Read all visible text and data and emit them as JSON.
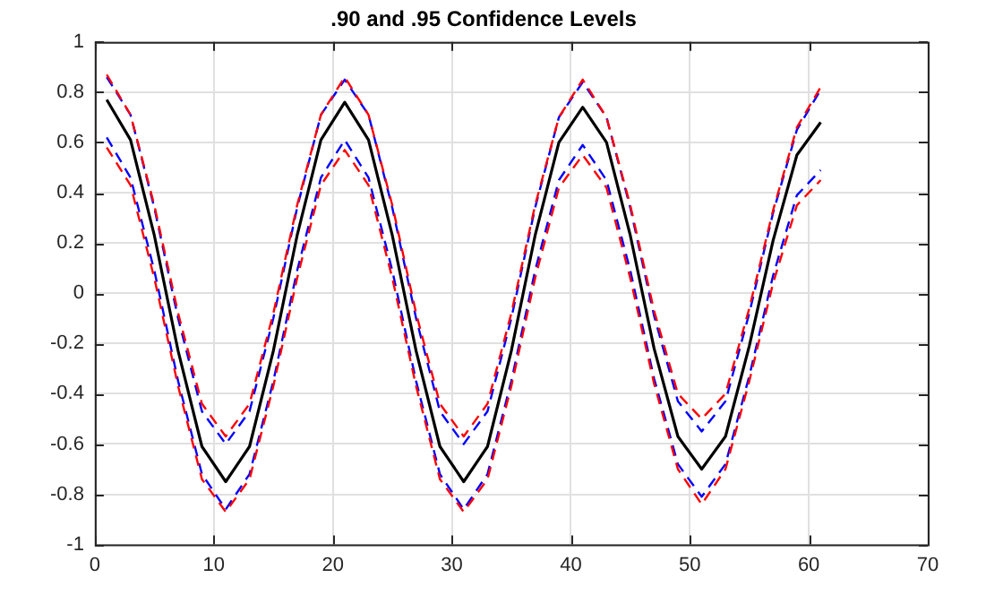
{
  "chart_data": {
    "type": "line",
    "title": ".90 and .95 Confidence Levels",
    "x": [
      1,
      3,
      5,
      7,
      9,
      11,
      13,
      15,
      17,
      19,
      21,
      23,
      25,
      27,
      29,
      31,
      33,
      35,
      37,
      39,
      41,
      43,
      45,
      47,
      49,
      51,
      53,
      55,
      57,
      59,
      61
    ],
    "series": [
      {
        "color": "#ff0000",
        "line_style": "dashed",
        "values": [
          0.87,
          0.71,
          0.35,
          -0.08,
          -0.44,
          -0.57,
          -0.44,
          -0.08,
          0.35,
          0.71,
          0.86,
          0.71,
          0.35,
          -0.08,
          -0.44,
          -0.57,
          -0.44,
          -0.08,
          0.35,
          0.7,
          0.85,
          0.7,
          0.35,
          -0.07,
          -0.4,
          -0.5,
          -0.4,
          -0.06,
          0.33,
          0.66,
          0.82
        ]
      },
      {
        "color": "#ff0000",
        "line_style": "dashed",
        "values": [
          0.58,
          0.43,
          0.06,
          -0.37,
          -0.74,
          -0.87,
          -0.74,
          -0.37,
          0.06,
          0.43,
          0.57,
          0.43,
          0.06,
          -0.37,
          -0.74,
          -0.87,
          -0.74,
          -0.37,
          0.06,
          0.42,
          0.55,
          0.42,
          0.06,
          -0.36,
          -0.7,
          -0.84,
          -0.7,
          -0.35,
          0.04,
          0.35,
          0.45
        ]
      },
      {
        "color": "#0000ff",
        "line_style": "dashed",
        "values": [
          0.86,
          0.71,
          0.34,
          -0.1,
          -0.47,
          -0.6,
          -0.47,
          -0.1,
          0.34,
          0.71,
          0.85,
          0.71,
          0.34,
          -0.1,
          -0.47,
          -0.6,
          -0.47,
          -0.1,
          0.34,
          0.7,
          0.84,
          0.7,
          0.34,
          -0.09,
          -0.43,
          -0.55,
          -0.43,
          -0.08,
          0.32,
          0.65,
          0.81
        ]
      },
      {
        "color": "#0000ff",
        "line_style": "dashed",
        "values": [
          0.62,
          0.46,
          0.09,
          -0.35,
          -0.72,
          -0.86,
          -0.72,
          -0.35,
          0.09,
          0.46,
          0.61,
          0.46,
          0.09,
          -0.35,
          -0.72,
          -0.86,
          -0.72,
          -0.35,
          0.09,
          0.45,
          0.59,
          0.45,
          0.09,
          -0.34,
          -0.68,
          -0.81,
          -0.68,
          -0.33,
          0.07,
          0.39,
          0.49
        ]
      },
      {
        "color": "#000000",
        "line_style": "solid",
        "values": [
          0.77,
          0.61,
          0.23,
          -0.23,
          -0.61,
          -0.75,
          -0.61,
          -0.23,
          0.23,
          0.61,
          0.76,
          0.61,
          0.23,
          -0.23,
          -0.61,
          -0.75,
          -0.61,
          -0.23,
          0.23,
          0.6,
          0.74,
          0.6,
          0.23,
          -0.22,
          -0.57,
          -0.7,
          -0.57,
          -0.21,
          0.21,
          0.55,
          0.68
        ]
      }
    ],
    "xlim": [
      0,
      70
    ],
    "xticks": [
      0,
      10,
      20,
      30,
      40,
      50,
      60,
      70
    ],
    "ylim": [
      -1,
      1
    ],
    "yticks": [
      -1,
      -0.8,
      -0.6,
      -0.4,
      -0.2,
      0,
      0.2,
      0.4,
      0.6,
      0.8,
      1
    ],
    "grid": true,
    "legend": false,
    "marker": "none"
  }
}
